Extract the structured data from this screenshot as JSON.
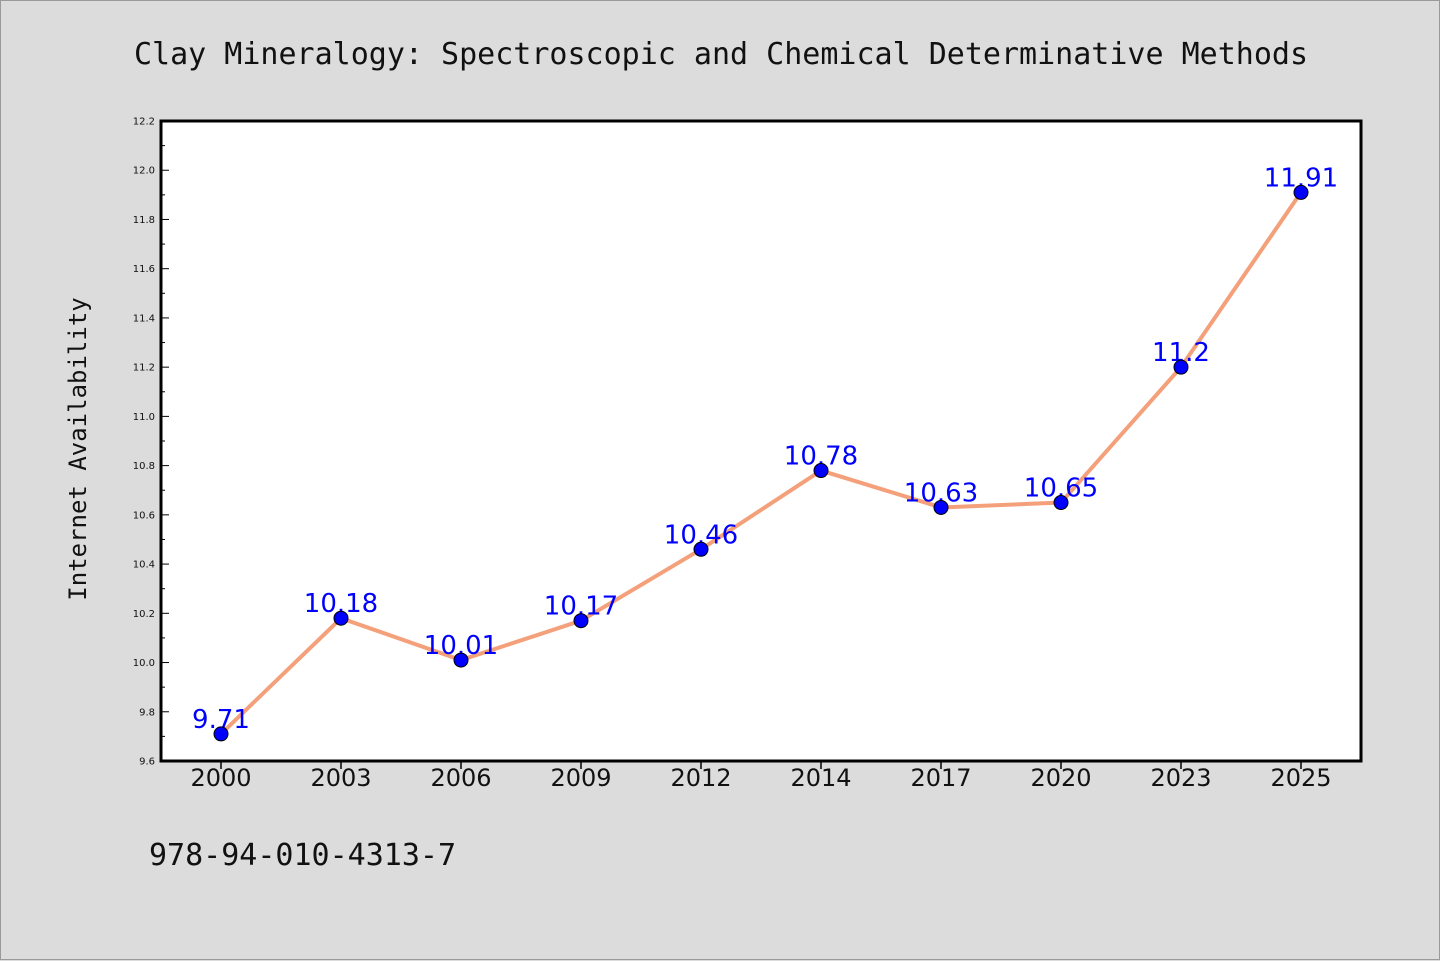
{
  "chart_data": {
    "type": "line",
    "title": "Clay Mineralogy: Spectroscopic and Chemical Determinative Methods",
    "xlabel": "",
    "ylabel": "Internet Availability",
    "categories": [
      "2000",
      "2003",
      "2006",
      "2009",
      "2012",
      "2014",
      "2017",
      "2020",
      "2023",
      "2025"
    ],
    "series": [
      {
        "values": [
          9.71,
          10.18,
          10.01,
          10.17,
          10.46,
          10.78,
          10.63,
          10.65,
          11.2,
          11.91
        ],
        "labels": [
          "9.71",
          "10.18",
          "10.01",
          "10.17",
          "10.46",
          "10.78",
          "10.63",
          "10.65",
          "11.2",
          "11.91"
        ]
      }
    ],
    "ylim": [
      9.6,
      12.2
    ],
    "yticks": [
      "9.6",
      "9.8",
      "10.0",
      "10.2",
      "10.4",
      "10.6",
      "10.8",
      "11.0",
      "11.2",
      "11.4",
      "11.6",
      "11.8",
      "12.0",
      "12.2"
    ],
    "grid": false,
    "legend": "none",
    "colors": {
      "line": "#f4a07a",
      "marker": "#0000ff",
      "label": "#0000ff",
      "background": "#dcdcdc",
      "plot_background": "#ffffff"
    }
  },
  "footer": {
    "isbn": "978-94-010-4313-7"
  }
}
